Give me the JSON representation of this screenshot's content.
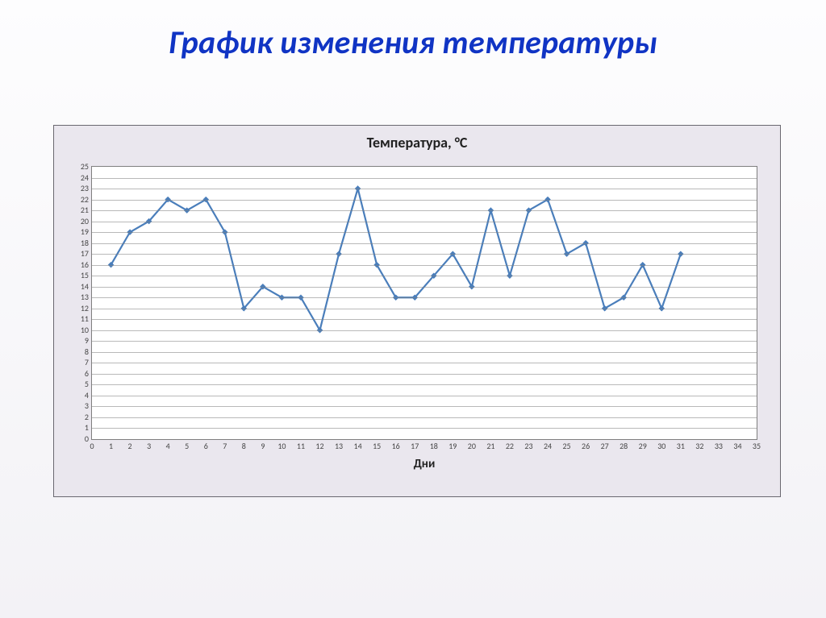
{
  "slide": {
    "title": "График изменения температуры",
    "title_fontsize": 40,
    "title_color": "#1034c4",
    "title_font_style": "italic",
    "title_font_weight": "bold",
    "background_gradient": [
      "#fdfdfe",
      "#f3f2f6"
    ]
  },
  "chart": {
    "type": "line",
    "title": "Температура, °C",
    "title_fontsize": 18,
    "title_font_weight": "bold",
    "xlabel": "Дни",
    "xlabel_fontsize": 15,
    "xlabel_font_weight": "bold",
    "panel_background": "#eae7ee",
    "panel_border_color": "#6a6870",
    "plot_background": "#ffffff",
    "plot_border_color": "#7f7f7f",
    "grid_color": "#7f7f7f",
    "grid_opacity": 0.55,
    "tick_fontsize": 10,
    "tick_color": "#444444",
    "line_color": "#4a7ebb",
    "line_width": 2.2,
    "marker_style": "diamond",
    "marker_size": 7,
    "marker_fill": "#4a7ebb",
    "marker_stroke": "#4a7ebb",
    "xlim": [
      0,
      35
    ],
    "ylim": [
      0,
      25
    ],
    "xtick_step": 1,
    "ytick_step": 1,
    "x_values": [
      1,
      2,
      3,
      4,
      5,
      6,
      7,
      8,
      9,
      10,
      11,
      12,
      13,
      14,
      15,
      16,
      17,
      18,
      19,
      20,
      21,
      22,
      23,
      24,
      25,
      26,
      27,
      28,
      29,
      30,
      31
    ],
    "y_values": [
      16,
      19,
      20,
      22,
      21,
      22,
      19,
      12,
      14,
      13,
      13,
      10,
      17,
      23,
      16,
      13,
      13,
      15,
      17,
      14,
      21,
      15,
      21,
      22,
      17,
      18,
      12,
      13,
      16,
      12,
      17
    ]
  }
}
